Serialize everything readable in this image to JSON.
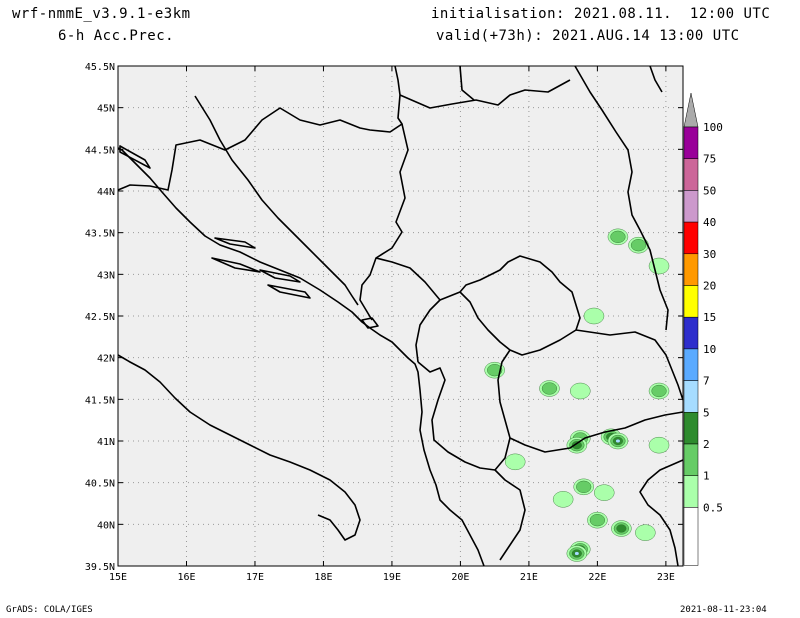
{
  "header": {
    "model": "wrf-nmmE_v3.9.1-e3km",
    "field": "6-h Acc.Prec.",
    "init": "initialisation: 2021.08.11.  12:00 UTC",
    "valid": "valid(+73h): 2021.AUG.14 13:00 UTC"
  },
  "footer": {
    "credit": "GrADS: COLA/IGES",
    "timestamp": "2021-08-11-23:04"
  },
  "map": {
    "background_color": "#efefef",
    "lon_labels": [
      "15E",
      "16E",
      "17E",
      "18E",
      "19E",
      "20E",
      "21E",
      "22E",
      "23E"
    ],
    "lat_labels": [
      "45.5N",
      "45N",
      "44.5N",
      "44N",
      "43.5N",
      "43N",
      "42.5N",
      "42N",
      "41.5N",
      "41N",
      "40.5N",
      "40N",
      "39.5N"
    ]
  },
  "colorbar": {
    "bins": [
      {
        "color": "#aaffaa"
      },
      {
        "color": "#66cc66"
      },
      {
        "color": "#2e8b2e"
      },
      {
        "color": "#a6dcff"
      },
      {
        "color": "#5aaaff"
      },
      {
        "color": "#2e2ecc"
      },
      {
        "color": "#ffff00"
      },
      {
        "color": "#ff9900"
      },
      {
        "color": "#ff0000"
      },
      {
        "color": "#cc99cc"
      },
      {
        "color": "#cc6699"
      },
      {
        "color": "#990099"
      }
    ],
    "labels": [
      "0.5",
      "1",
      "2",
      "5",
      "7",
      "10",
      "15",
      "20",
      "30",
      "40",
      "50",
      "75",
      "100"
    ],
    "top_color": "#aaaaaa"
  },
  "precip_cells": [
    {
      "lon": 20.5,
      "lat": 41.85,
      "level": 2
    },
    {
      "lon": 21.3,
      "lat": 41.63,
      "level": 2
    },
    {
      "lon": 21.75,
      "lat": 41.6,
      "level": 1
    },
    {
      "lon": 21.95,
      "lat": 42.5,
      "level": 1
    },
    {
      "lon": 22.3,
      "lat": 43.45,
      "level": 2
    },
    {
      "lon": 22.6,
      "lat": 43.35,
      "level": 2
    },
    {
      "lon": 22.9,
      "lat": 41.6,
      "level": 2
    },
    {
      "lon": 21.75,
      "lat": 41.03,
      "level": 2
    },
    {
      "lon": 21.7,
      "lat": 40.95,
      "level": 3
    },
    {
      "lon": 22.2,
      "lat": 41.05,
      "level": 3
    },
    {
      "lon": 22.3,
      "lat": 41.0,
      "level": 4
    },
    {
      "lon": 22.9,
      "lat": 40.95,
      "level": 1
    },
    {
      "lon": 21.8,
      "lat": 40.45,
      "level": 2
    },
    {
      "lon": 22.1,
      "lat": 40.38,
      "level": 1
    },
    {
      "lon": 22.0,
      "lat": 40.05,
      "level": 2
    },
    {
      "lon": 22.35,
      "lat": 39.95,
      "level": 3
    },
    {
      "lon": 21.75,
      "lat": 39.7,
      "level": 3
    },
    {
      "lon": 21.7,
      "lat": 39.65,
      "level": 4
    },
    {
      "lon": 22.7,
      "lat": 39.9,
      "level": 1
    },
    {
      "lon": 20.8,
      "lat": 40.75,
      "level": 1
    },
    {
      "lon": 21.5,
      "lat": 40.3,
      "level": 1
    },
    {
      "lon": 22.9,
      "lat": 43.1,
      "level": 1
    }
  ]
}
